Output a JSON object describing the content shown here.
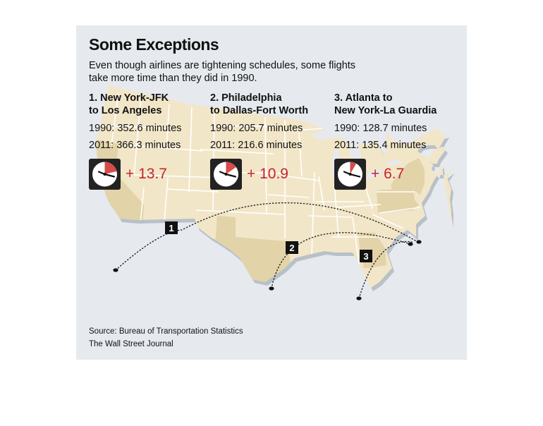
{
  "title": "Some Exceptions",
  "subtitle": "Even though airlines are tightening schedules, some flights take more time than they did in 1990.",
  "routes": [
    {
      "number": "1",
      "title_line1": "1. New York-JFK",
      "title_line2": "to Los Angeles",
      "stat_1990": "1990: 352.6 minutes",
      "stat_2011": "2011: 366.3 minutes",
      "change": "+ 13.7"
    },
    {
      "number": "2",
      "title_line1": "2. Philadelphia",
      "title_line2": "to Dallas-Fort Worth",
      "stat_1990": "1990: 205.7 minutes",
      "stat_2011": "2011: 216.6 minutes",
      "change": "+ 10.9"
    },
    {
      "number": "3",
      "title_line1": "3. Atlanta to",
      "title_line2": "New York-La Guardia",
      "stat_1990": "1990: 128.7 minutes",
      "stat_2011": "2011: 135.4 minutes",
      "change": "+ 6.7"
    }
  ],
  "source": "Source: Bureau of Transportation Statistics",
  "credit": "The Wall Street Journal",
  "colors": {
    "panel_background": "#e6eaee",
    "land": "#f2e6c8",
    "highlighted_state": "#e2d3a8",
    "state_border": "#ffffff",
    "accent_red": "#c4252d",
    "clock_face": "#222222",
    "marker": "#111111"
  }
}
